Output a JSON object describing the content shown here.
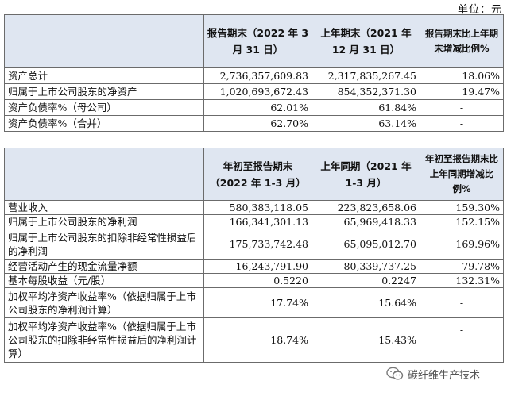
{
  "unit_label": "单位：元",
  "table1": {
    "headers": [
      "",
      "报告期末（2022 年 3 月 31 日）",
      "上年期末（2021 年 12 月 31 日）",
      "报告期末比上年期末增减比例%"
    ],
    "rows": [
      {
        "label": "资产总计",
        "c1": "2,736,357,609.83",
        "c2": "2,317,835,267.45",
        "c3": "18.06%"
      },
      {
        "label": "归属于上市公司股东的净资产",
        "c1": "1,020,693,672.43",
        "c2": "854,352,371.30",
        "c3": "19.47%"
      },
      {
        "label": "资产负债率%（母公司）",
        "c1": "62.01%",
        "c2": "61.84%",
        "c3": "-"
      },
      {
        "label": "资产负债率%（合并）",
        "c1": "62.70%",
        "c2": "63.14%",
        "c3": "-"
      }
    ]
  },
  "table2": {
    "headers": [
      "",
      "年初至报告期末（2022 年 1-3 月）",
      "上年同期（2021 年 1-3 月）",
      "年初至报告期末比上年同期增减比例%"
    ],
    "rows": [
      {
        "label": "营业收入",
        "c1": "580,383,118.05",
        "c2": "223,823,658.06",
        "c3": "159.30%"
      },
      {
        "label": "归属于上市公司股东的净利润",
        "c1": "166,341,301.13",
        "c2": "65,969,418.33",
        "c3": "152.15%"
      },
      {
        "label": "归属于上市公司股东的扣除非经常性损益后的净利润",
        "c1": "175,733,742.48",
        "c2": "65,095,012.70",
        "c3": "169.96%"
      },
      {
        "label": "经营活动产生的现金流量净额",
        "c1": "16,243,791.90",
        "c2": "80,339,737.25",
        "c3": "-79.78%"
      },
      {
        "label": "基本每股收益（元/股）",
        "c1": "0.5220",
        "c2": "0.2247",
        "c3": "132.31%"
      },
      {
        "label": "加权平均净资产收益率%（依据归属于上市公司股东的净利润计算）",
        "c1": "17.74%",
        "c2": "15.64%",
        "c3": "-"
      },
      {
        "label": "加权平均净资产收益率%（依据归属于上市公司股东的扣除非经常性损益后的净利润计算）",
        "c1": "18.74%",
        "c2": "15.43%",
        "c3": "-"
      }
    ]
  },
  "watermark": {
    "text": "碳纤维生产技术",
    "icon": "wechat-icon"
  }
}
